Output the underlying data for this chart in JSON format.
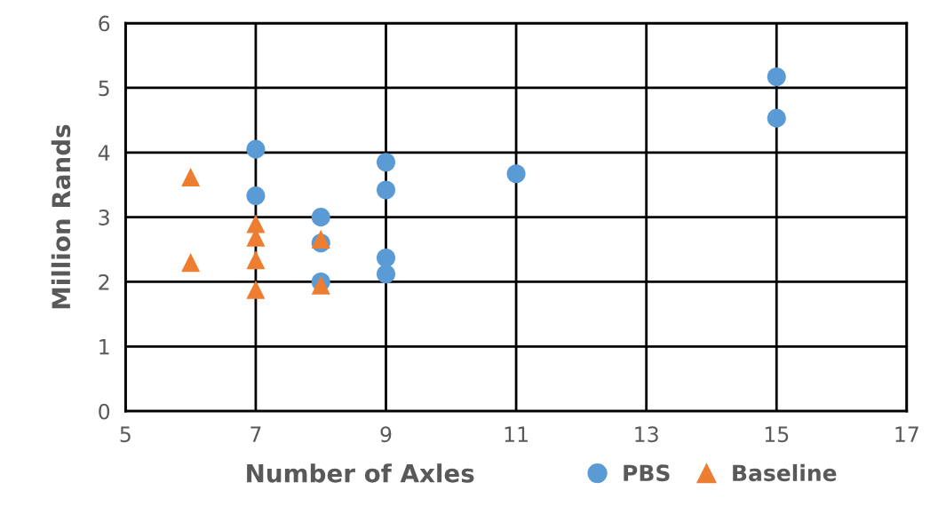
{
  "chart_data": {
    "type": "scatter",
    "xlabel": "Number of Axles",
    "ylabel": "Million Rands",
    "xlim": [
      5,
      17
    ],
    "xticks": [
      5,
      7,
      9,
      11,
      13,
      15,
      17
    ],
    "ylim": [
      0,
      6
    ],
    "yticks": [
      0,
      1,
      2,
      3,
      4,
      5,
      6
    ],
    "grid": true,
    "legend": "bottom",
    "series": [
      {
        "name": "PBS",
        "color": "#5b9bd5",
        "marker": "circle",
        "x": [
          7,
          7,
          8,
          8,
          8,
          9,
          9,
          9,
          9,
          11,
          15,
          15
        ],
        "values": [
          4.05,
          3.33,
          3.0,
          2.6,
          2.0,
          3.85,
          3.42,
          2.37,
          2.12,
          3.67,
          5.17,
          4.53
        ]
      },
      {
        "name": "Baseline",
        "color": "#ed7d31",
        "marker": "triangle",
        "x": [
          6,
          6,
          7,
          7,
          7,
          7,
          8,
          8
        ],
        "values": [
          3.62,
          2.3,
          2.9,
          2.69,
          2.34,
          1.88,
          2.66,
          1.95
        ]
      }
    ]
  }
}
